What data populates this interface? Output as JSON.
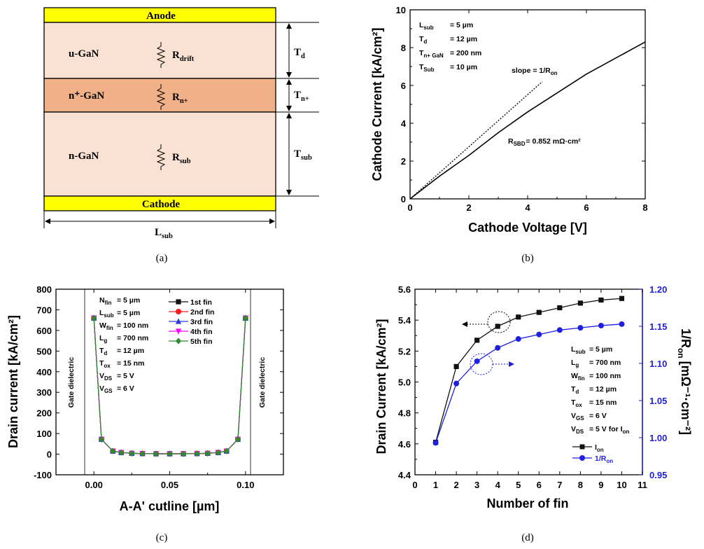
{
  "captions": [
    "(a)",
    "(b)",
    "(c)",
    "(d)"
  ],
  "panel_a": {
    "anode": "Anode",
    "cathode": "Cathode",
    "layers": [
      {
        "label": "u-GaN",
        "res": "R",
        "res_sub": "drift",
        "dim": "T",
        "dim_sub": "d",
        "color": "#f9e2d3"
      },
      {
        "label": "n⁺-GaN",
        "res": "R",
        "res_sub": "n+",
        "dim": "T",
        "dim_sub": "n+",
        "color": "#f0b088"
      },
      {
        "label": "n-GaN",
        "res": "R",
        "res_sub": "sub",
        "dim": "T",
        "dim_sub": "sub",
        "color": "#f9e2d3"
      }
    ],
    "width_label": "L",
    "width_sub": "sub",
    "electrode_color": "#ffff00"
  },
  "chart_data": [
    {
      "type": "line",
      "title": "",
      "xlabel": "Cathode Voltage [V]",
      "ylabel": "Cathode Current [kA/cm²]",
      "xlim": [
        0,
        8
      ],
      "ylim": [
        0,
        10
      ],
      "xticks": [
        "0",
        "2",
        "4",
        "6",
        "8"
      ],
      "yticks": [
        "0",
        "2",
        "4",
        "6",
        "8",
        "10"
      ],
      "series": [
        {
          "style": "solid",
          "x": [
            0,
            0.5,
            1,
            1.5,
            2,
            3,
            4,
            5,
            6,
            7,
            8
          ],
          "y": [
            0,
            0.6,
            1.2,
            1.75,
            2.3,
            3.5,
            4.6,
            5.6,
            6.6,
            7.45,
            8.3
          ]
        },
        {
          "style": "dotted",
          "x": [
            0,
            4.5
          ],
          "y": [
            0,
            6.2
          ]
        }
      ],
      "annotations": [
        {
          "t": "L",
          "s": "sub",
          "v": "= 5 µm"
        },
        {
          "t": "T",
          "s": "d",
          "v": "= 12 µm"
        },
        {
          "t": "T",
          "s": "n+ GaN",
          "v": "= 200 nm"
        },
        {
          "t": "T",
          "s": "Sub",
          "v": "= 10 µm"
        }
      ],
      "slope_label": "slope = 1/R",
      "slope_sub": "on",
      "rsbd_label": "R",
      "rsbd_sub": "SBD",
      "rsbd_value": "= 0.852 mΩ·cm²"
    },
    {
      "type": "line",
      "title": "",
      "xlabel": "A-A' cutline [µm]",
      "ylabel": "Drain current [kA/cm²]",
      "xlim": [
        -0.025,
        0.125
      ],
      "ylim": [
        -100,
        800
      ],
      "xticks": [
        "0.00",
        "0.05",
        "0.10"
      ],
      "xtick_values": [
        0,
        0.05,
        0.1
      ],
      "yticks": [
        "-100",
        "0",
        "100",
        "200",
        "300",
        "400",
        "500",
        "600",
        "700",
        "800"
      ],
      "x": [
        0,
        0.005,
        0.0125,
        0.018,
        0.025,
        0.032,
        0.041,
        0.05,
        0.059,
        0.068,
        0.075,
        0.082,
        0.0875,
        0.095,
        0.1
      ],
      "y": [
        660,
        72,
        15,
        8,
        4,
        3,
        2,
        2,
        2,
        3,
        4,
        8,
        15,
        72,
        660
      ],
      "series": [
        {
          "name": "1st fin",
          "color": "#111111",
          "marker": "square"
        },
        {
          "name": "2nd fin",
          "color": "#ff1a1a",
          "marker": "circle"
        },
        {
          "name": "3rd fin",
          "color": "#2a3bd8",
          "marker": "triangle"
        },
        {
          "name": "4th fin",
          "color": "#ff00ff",
          "marker": "tri-down"
        },
        {
          "name": "5th fin",
          "color": "#2e8b2e",
          "marker": "diamond"
        }
      ],
      "annotations": [
        {
          "t": "N",
          "s": "fin",
          "v": "= 5 µm"
        },
        {
          "t": "L",
          "s": "sub",
          "v": "= 5 µm"
        },
        {
          "t": "W",
          "s": "fin",
          "v": "= 100 nm"
        },
        {
          "t": "L",
          "s": "g",
          "v": "= 700 nm"
        },
        {
          "t": "T",
          "s": "d",
          "v": "= 12 µm"
        },
        {
          "t": "T",
          "s": "ox",
          "v": "= 15 nm"
        },
        {
          "t": "V",
          "s": "DS",
          "v": "= 5 V"
        },
        {
          "t": "V",
          "s": "GS",
          "v": "= 6 V"
        }
      ],
      "gate_label": "Gate dielectric"
    },
    {
      "type": "line",
      "title": "",
      "xlabel": "Number of fin",
      "ylabel": "Drain Current [kA/cm²]",
      "ylabel_right": "1/R",
      "ylabel_right_sub": "on",
      "ylabel_right_unit": "[mΩ⁻¹·cm⁻²]",
      "xlim": [
        0,
        11
      ],
      "ylim": [
        4.4,
        5.6
      ],
      "ylim_right": [
        0.95,
        1.2
      ],
      "xticks": [
        "0",
        "1",
        "2",
        "3",
        "4",
        "5",
        "6",
        "7",
        "8",
        "9",
        "10",
        "11"
      ],
      "yticks": [
        "4.4",
        "4.6",
        "4.8",
        "5.0",
        "5.2",
        "5.4",
        "5.6"
      ],
      "yticks_right": [
        "0.95",
        "1.00",
        "1.05",
        "1.10",
        "1.15",
        "1.20"
      ],
      "categories": [
        1,
        2,
        3,
        4,
        5,
        6,
        7,
        8,
        9,
        10
      ],
      "series": [
        {
          "name": "I",
          "name_sub": "on",
          "axis": "left",
          "color": "#111111",
          "values": [
            4.61,
            5.1,
            5.27,
            5.36,
            5.42,
            5.45,
            5.48,
            5.51,
            5.53,
            5.54
          ]
        },
        {
          "name": "1/R",
          "name_sub": "on",
          "axis": "right",
          "color": "#1f1fe0",
          "values": [
            0.993,
            1.073,
            1.103,
            1.121,
            1.133,
            1.139,
            1.145,
            1.148,
            1.151,
            1.153
          ]
        }
      ],
      "annotations": [
        {
          "t": "L",
          "s": "sub",
          "v": "= 5 µm"
        },
        {
          "t": "L",
          "s": "g",
          "v": "= 700 nm"
        },
        {
          "t": "W",
          "s": "fin",
          "v": "= 100 nm"
        },
        {
          "t": "T",
          "s": "d",
          "v": "= 12 µm"
        },
        {
          "t": "T",
          "s": "ox",
          "v": "= 15 nm"
        },
        {
          "t": "V",
          "s": "GS",
          "v": "= 6 V"
        },
        {
          "t": "V",
          "s": "DS",
          "v": "= 5 V for I",
          "v_sub": "on"
        }
      ],
      "right_axis_color": "#1f1fe0"
    }
  ]
}
